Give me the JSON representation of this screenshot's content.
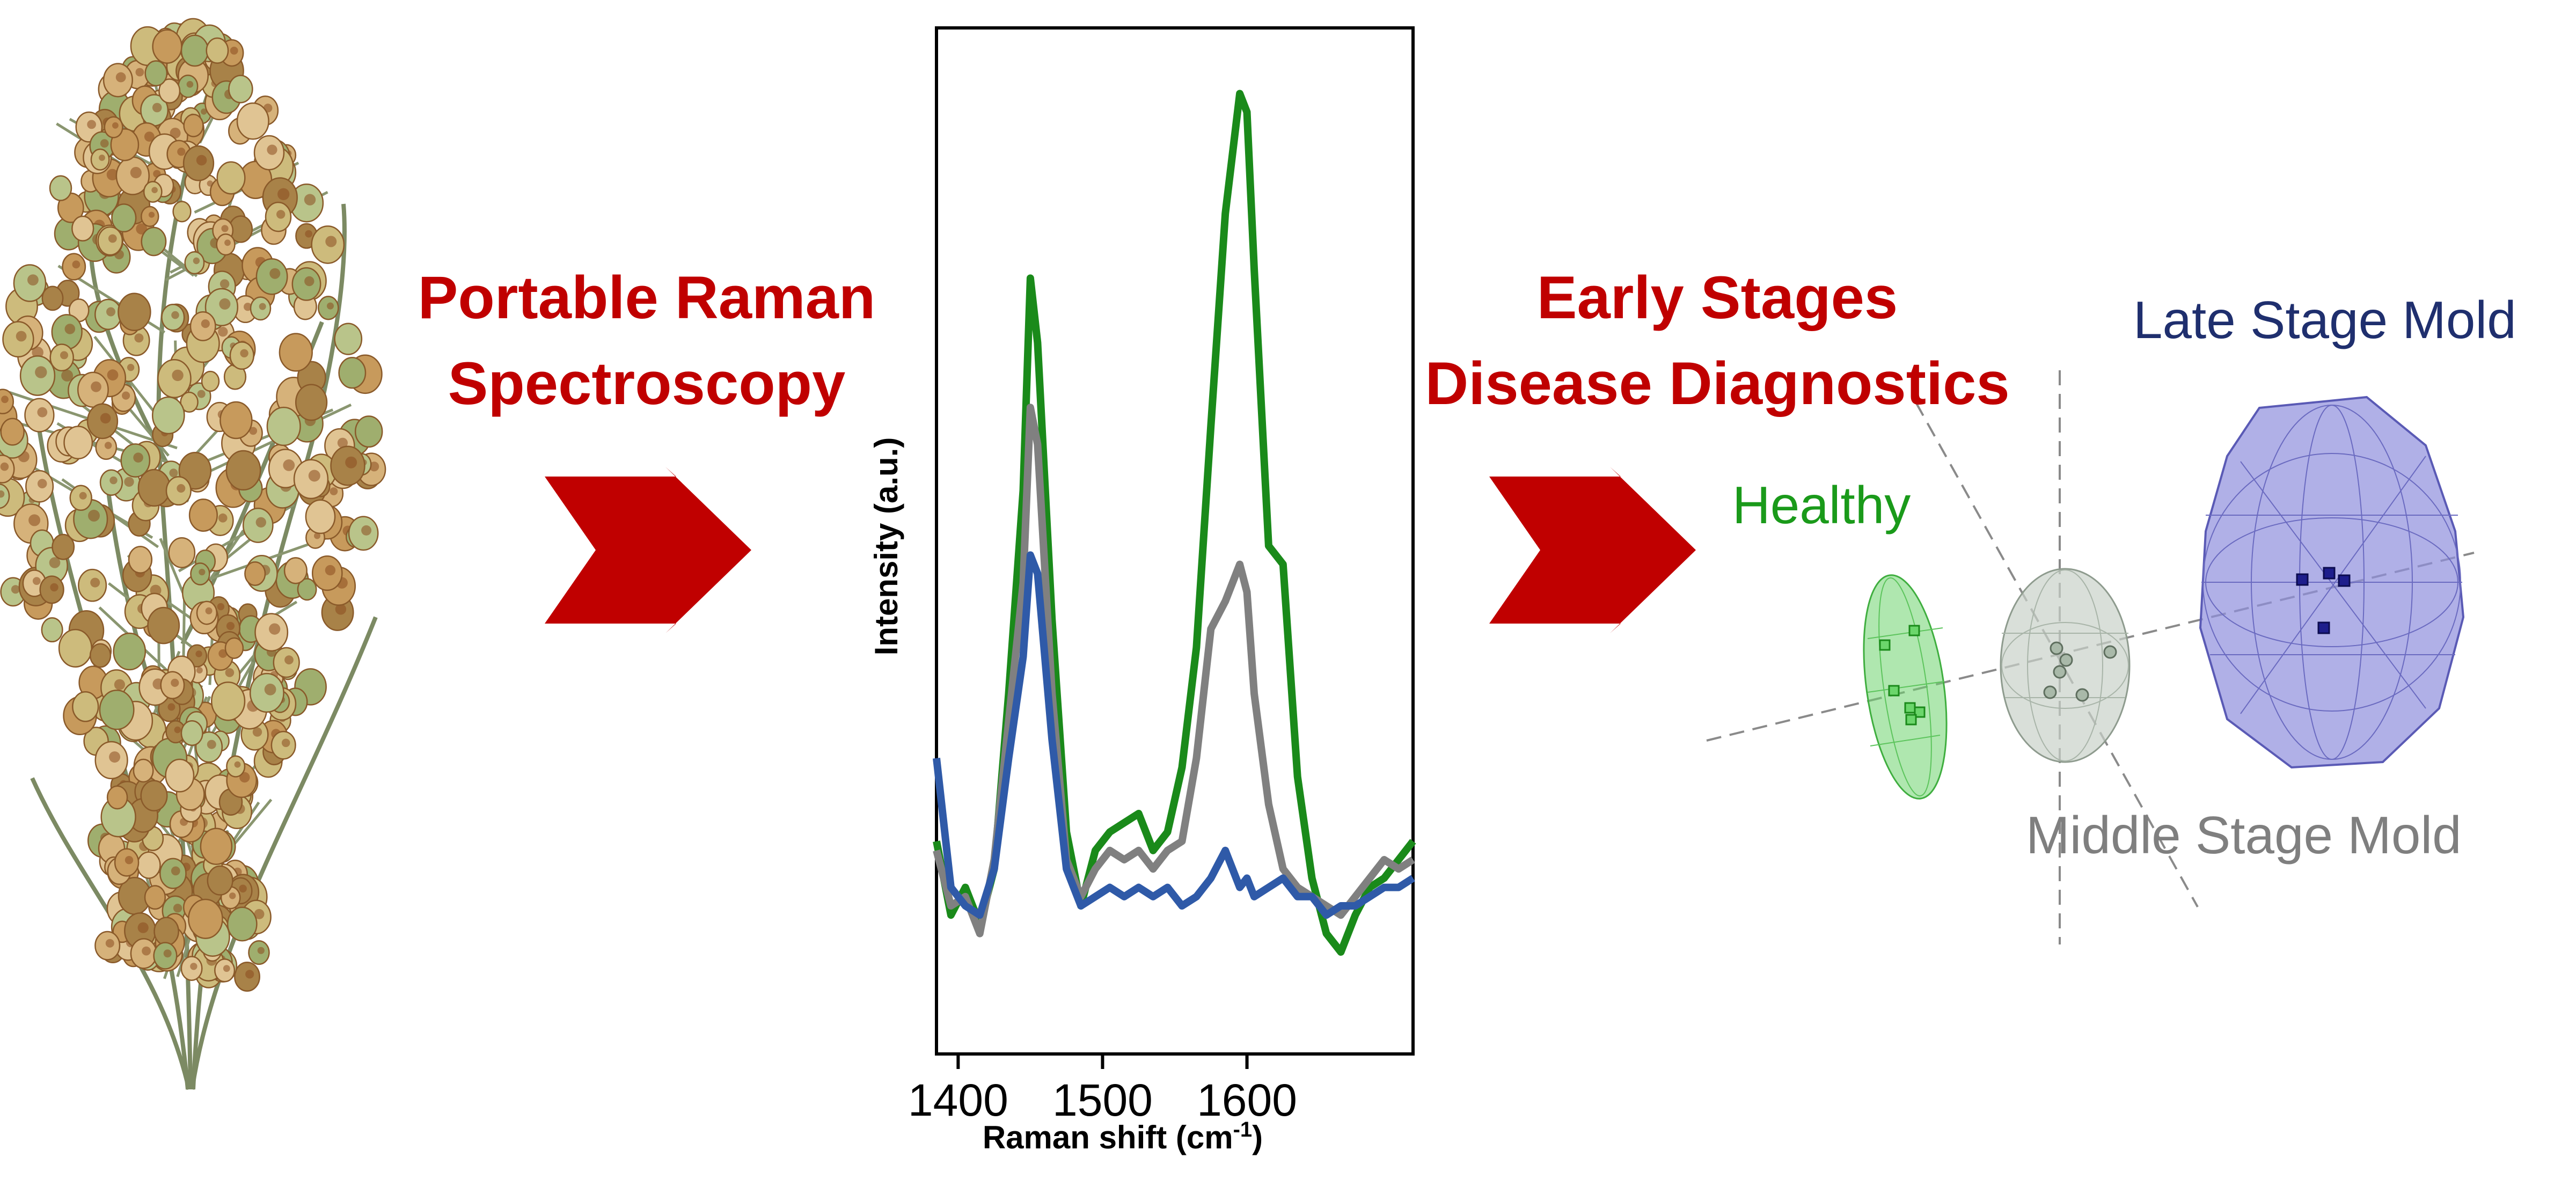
{
  "titles": {
    "left_line1": "Portable Raman",
    "left_line2": "Spectroscopy",
    "right_line1": "Early Stages",
    "right_line2": "Disease Diagnostics"
  },
  "clusters": {
    "healthy": "Healthy",
    "middle": "Middle Stage Mold",
    "late": "Late Stage Mold"
  },
  "colors": {
    "title_red": "#c00000",
    "arrow_red": "#c00000",
    "healthy": "#1a9a1a",
    "middle": "#7f7f7f",
    "late": "#1f2f6e",
    "healthy_fill": "#6ed36e",
    "middle_fill": "#c9d2c9",
    "late_fill": "#8f8fdd"
  },
  "icons": [
    "sorghum-plant-image",
    "right-arrow-icon",
    "right-arrow-icon"
  ],
  "chart_data": {
    "type": "line",
    "xlabel": "Raman shift (cm",
    "xlabel_sup": "-1",
    "xlabel_end": ")",
    "ylabel": "Intensity (a.u.)",
    "xlim": [
      1385,
      1715
    ],
    "ylim": [
      0,
      1
    ],
    "xticks": [
      1400,
      1500,
      1600
    ],
    "x": [
      1385,
      1395,
      1405,
      1415,
      1425,
      1435,
      1445,
      1450,
      1455,
      1465,
      1475,
      1485,
      1495,
      1505,
      1515,
      1525,
      1535,
      1545,
      1555,
      1565,
      1575,
      1585,
      1595,
      1600,
      1605,
      1615,
      1625,
      1635,
      1645,
      1655,
      1665,
      1675,
      1685,
      1695,
      1705,
      1715
    ],
    "series": [
      {
        "color": "#1a8a1a",
        "values": [
          0.17,
          0.09,
          0.12,
          0.08,
          0.14,
          0.33,
          0.55,
          0.78,
          0.71,
          0.41,
          0.18,
          0.1,
          0.16,
          0.18,
          0.19,
          0.2,
          0.16,
          0.18,
          0.25,
          0.38,
          0.62,
          0.85,
          0.98,
          0.96,
          0.79,
          0.49,
          0.47,
          0.24,
          0.13,
          0.07,
          0.05,
          0.09,
          0.12,
          0.13,
          0.15,
          0.17
        ]
      },
      {
        "color": "#808080",
        "values": [
          0.16,
          0.1,
          0.11,
          0.07,
          0.15,
          0.3,
          0.45,
          0.64,
          0.6,
          0.33,
          0.15,
          0.11,
          0.14,
          0.16,
          0.15,
          0.16,
          0.14,
          0.16,
          0.17,
          0.26,
          0.4,
          0.43,
          0.47,
          0.44,
          0.33,
          0.21,
          0.14,
          0.12,
          0.11,
          0.1,
          0.09,
          0.11,
          0.13,
          0.15,
          0.14,
          0.15
        ]
      },
      {
        "color": "#2f5aa8",
        "values": [
          0.26,
          0.12,
          0.1,
          0.09,
          0.14,
          0.26,
          0.37,
          0.48,
          0.46,
          0.28,
          0.14,
          0.1,
          0.11,
          0.12,
          0.11,
          0.12,
          0.11,
          0.12,
          0.1,
          0.11,
          0.13,
          0.16,
          0.12,
          0.13,
          0.11,
          0.12,
          0.13,
          0.11,
          0.11,
          0.09,
          0.1,
          0.1,
          0.11,
          0.12,
          0.12,
          0.13
        ]
      }
    ]
  }
}
